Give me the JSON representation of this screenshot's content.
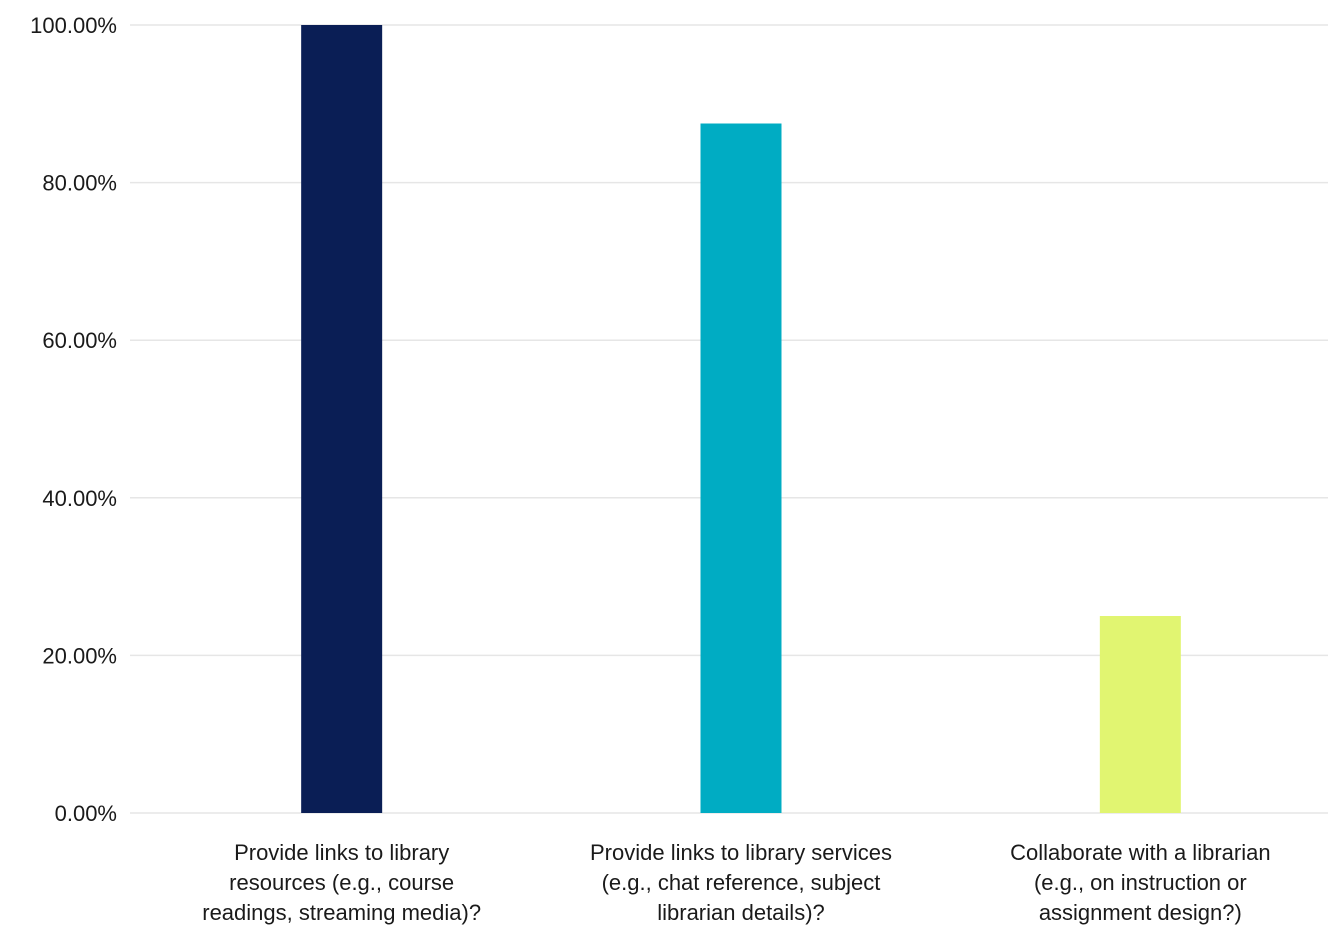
{
  "chart_data": {
    "type": "bar",
    "categories": [
      [
        "Provide links to library",
        "resources (e.g., course",
        "readings, streaming media)?"
      ],
      [
        "Provide links to library services",
        "(e.g., chat reference, subject",
        "librarian details)?"
      ],
      [
        "Collaborate with a librarian",
        "(e.g., on instruction or",
        "assignment design?)"
      ]
    ],
    "values": [
      100.0,
      87.5,
      25.0
    ],
    "colors": [
      "#0a1e55",
      "#00acc3",
      "#e1f571"
    ],
    "ylim": [
      0,
      100
    ],
    "yticks": [
      0,
      20,
      40,
      60,
      80,
      100
    ],
    "ytick_labels": [
      "0.00%",
      "20.00%",
      "40.00%",
      "60.00%",
      "80.00%",
      "100.00%"
    ],
    "grid": true,
    "title": "",
    "xlabel": "",
    "ylabel": ""
  }
}
